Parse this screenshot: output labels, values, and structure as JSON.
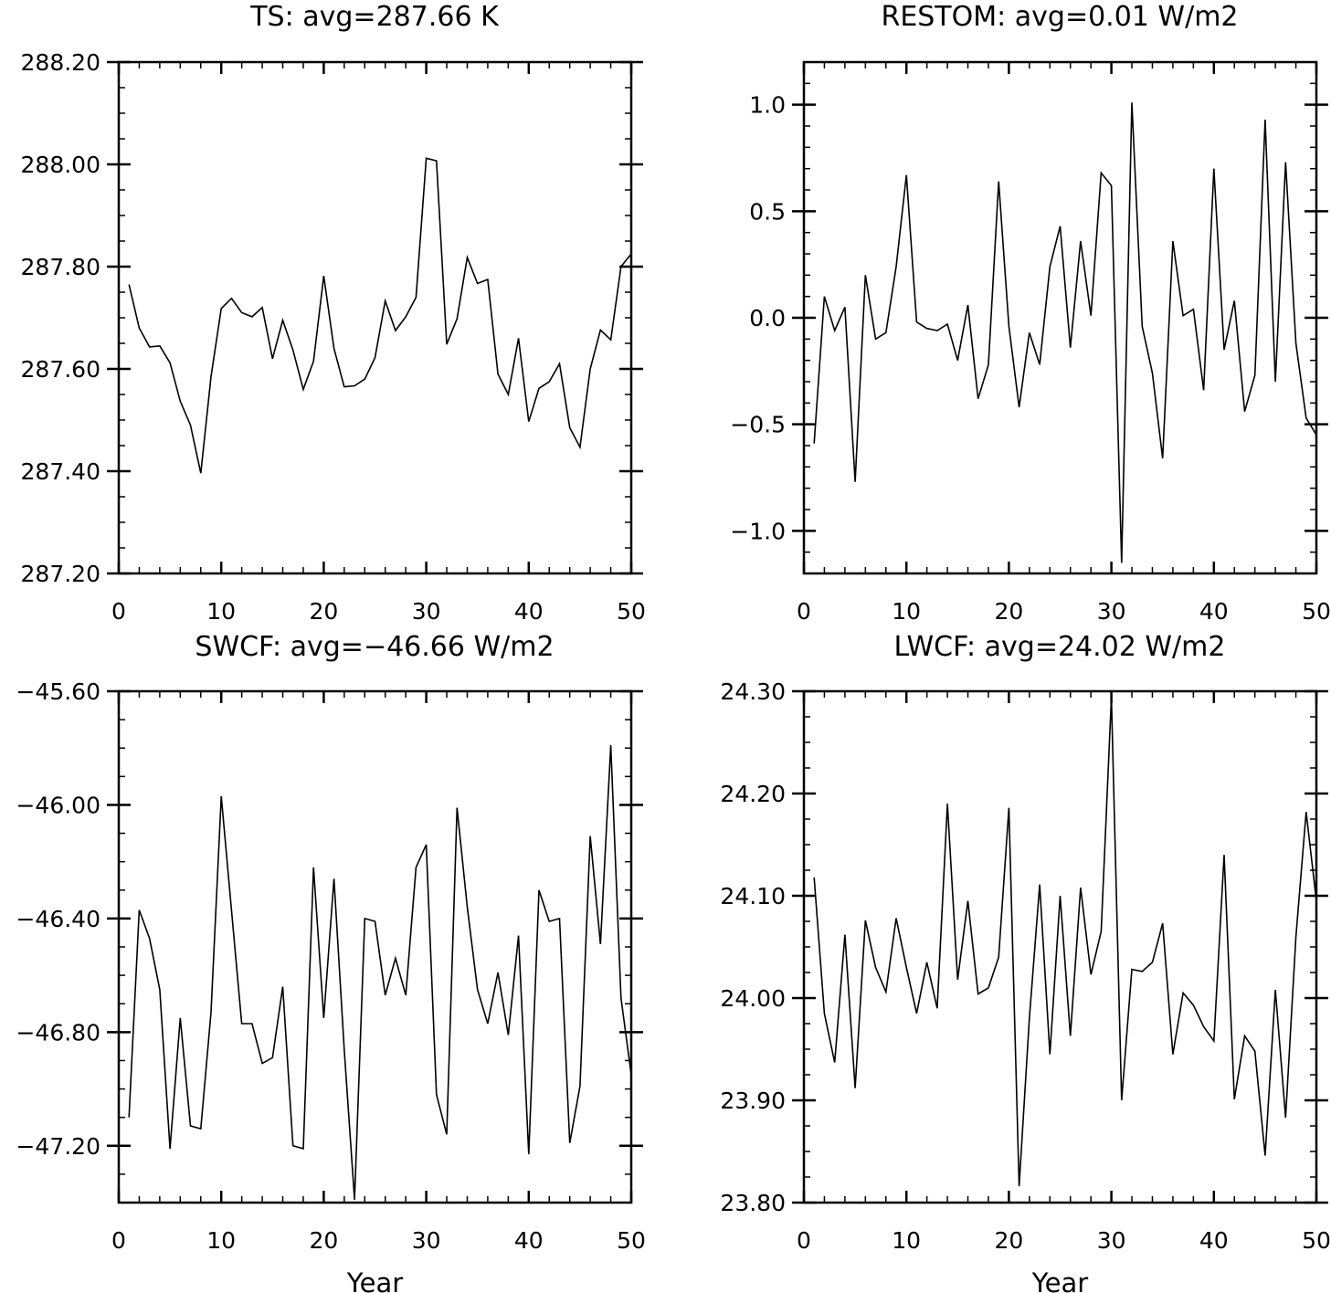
{
  "chart_data": [
    {
      "type": "line",
      "title": "TS: avg=287.66 K",
      "xlabel": "",
      "ylabel": "",
      "xlim": [
        0,
        50
      ],
      "ylim": [
        287.2,
        288.2
      ],
      "xticks": [
        0,
        10,
        20,
        30,
        40,
        50
      ],
      "xtick_labels": [
        "0",
        "10",
        "20",
        "30",
        "40",
        "50"
      ],
      "yticks": [
        287.2,
        287.4,
        287.6,
        287.8,
        288.0,
        288.2
      ],
      "ytick_labels": [
        "287.20",
        "287.40",
        "287.60",
        "287.80",
        "288.00",
        "288.20"
      ],
      "y_minor_step": 0.05,
      "x_minor_step": 2,
      "grid": false,
      "legend": "none",
      "series": [
        {
          "x": [
            1,
            2,
            3,
            4,
            5,
            6,
            7,
            8,
            9,
            10,
            11,
            12,
            13,
            14,
            15,
            16,
            17,
            18,
            19,
            20,
            21,
            22,
            23,
            24,
            25,
            26,
            27,
            28,
            29,
            30,
            31,
            32,
            33,
            34,
            35,
            36,
            37,
            38,
            39,
            40,
            41,
            42,
            43,
            44,
            45,
            46,
            47,
            48,
            49,
            50
          ],
          "values": [
            287.765,
            287.68,
            287.643,
            287.645,
            287.612,
            287.537,
            287.49,
            287.396,
            287.585,
            287.718,
            287.738,
            287.71,
            287.702,
            287.72,
            287.62,
            287.695,
            287.637,
            287.56,
            287.615,
            287.782,
            287.64,
            287.565,
            287.567,
            287.58,
            287.622,
            287.733,
            287.675,
            287.702,
            287.74,
            288.012,
            288.007,
            287.648,
            287.698,
            287.818,
            287.767,
            287.775,
            287.59,
            287.55,
            287.66,
            287.497,
            287.562,
            287.575,
            287.61,
            287.485,
            287.447,
            287.6,
            287.676,
            287.657,
            287.8,
            287.825
          ]
        }
      ]
    },
    {
      "type": "line",
      "title": "RESTOM: avg=0.01 W/m2",
      "xlabel": "",
      "ylabel": "",
      "xlim": [
        0,
        50
      ],
      "ylim": [
        -1.2,
        1.2
      ],
      "xticks": [
        0,
        10,
        20,
        30,
        40,
        50
      ],
      "xtick_labels": [
        "0",
        "10",
        "20",
        "30",
        "40",
        "50"
      ],
      "yticks": [
        -1.0,
        -0.5,
        0.0,
        0.5,
        1.0
      ],
      "ytick_labels": [
        "−1.0",
        "−0.5",
        "0.0",
        "0.5",
        "1.0"
      ],
      "y_minor_step": 0.1,
      "x_minor_step": 2,
      "grid": false,
      "legend": "none",
      "series": [
        {
          "x": [
            1,
            2,
            3,
            4,
            5,
            6,
            7,
            8,
            9,
            10,
            11,
            12,
            13,
            14,
            15,
            16,
            17,
            18,
            19,
            20,
            21,
            22,
            23,
            24,
            25,
            26,
            27,
            28,
            29,
            30,
            31,
            32,
            33,
            34,
            35,
            36,
            37,
            38,
            39,
            40,
            41,
            42,
            43,
            44,
            45,
            46,
            47,
            48,
            49,
            50
          ],
          "values": [
            -0.59,
            0.1,
            -0.06,
            0.05,
            -0.77,
            0.2,
            -0.1,
            -0.07,
            0.24,
            0.67,
            -0.02,
            -0.05,
            -0.06,
            -0.03,
            -0.2,
            0.06,
            -0.38,
            -0.22,
            0.64,
            -0.04,
            -0.42,
            -0.07,
            -0.22,
            0.24,
            0.43,
            -0.14,
            0.36,
            0.01,
            0.68,
            0.62,
            -1.15,
            1.01,
            -0.04,
            -0.26,
            -0.66,
            0.36,
            0.01,
            0.04,
            -0.34,
            0.7,
            -0.15,
            0.08,
            -0.44,
            -0.27,
            0.93,
            -0.3,
            0.73,
            -0.12,
            -0.47,
            -0.55
          ]
        }
      ]
    },
    {
      "type": "line",
      "title": "SWCF: avg=−46.66 W/m2",
      "xlabel": "Year",
      "ylabel": "",
      "xlim": [
        0,
        50
      ],
      "ylim": [
        -47.4,
        -45.6
      ],
      "xticks": [
        0,
        10,
        20,
        30,
        40,
        50
      ],
      "xtick_labels": [
        "0",
        "10",
        "20",
        "30",
        "40",
        "50"
      ],
      "yticks": [
        -47.2,
        -46.8,
        -46.4,
        -46.0,
        -45.6
      ],
      "ytick_labels": [
        "−47.20",
        "−46.80",
        "−46.40",
        "−46.00",
        "−45.60"
      ],
      "y_minor_step": 0.1,
      "x_minor_step": 2,
      "grid": false,
      "legend": "none",
      "series": [
        {
          "x": [
            1,
            2,
            3,
            4,
            5,
            6,
            7,
            8,
            9,
            10,
            11,
            12,
            13,
            14,
            15,
            16,
            17,
            18,
            19,
            20,
            21,
            22,
            23,
            24,
            25,
            26,
            27,
            28,
            29,
            30,
            31,
            32,
            33,
            34,
            35,
            36,
            37,
            38,
            39,
            40,
            41,
            42,
            43,
            44,
            45,
            46,
            47,
            48,
            49,
            50
          ],
          "values": [
            -47.1,
            -46.37,
            -46.47,
            -46.65,
            -47.21,
            -46.75,
            -47.13,
            -47.14,
            -46.73,
            -45.97,
            -46.37,
            -46.77,
            -46.77,
            -46.91,
            -46.89,
            -46.64,
            -47.2,
            -47.21,
            -46.22,
            -46.75,
            -46.26,
            -46.86,
            -47.39,
            -46.4,
            -46.41,
            -46.67,
            -46.54,
            -46.67,
            -46.22,
            -46.14,
            -47.02,
            -47.16,
            -46.01,
            -46.36,
            -46.65,
            -46.77,
            -46.59,
            -46.81,
            -46.46,
            -47.23,
            -46.3,
            -46.41,
            -46.4,
            -47.19,
            -46.99,
            -46.11,
            -46.49,
            -45.79,
            -46.68,
            -46.95
          ]
        }
      ]
    },
    {
      "type": "line",
      "title": "LWCF: avg=24.02 W/m2",
      "xlabel": "Year",
      "ylabel": "",
      "xlim": [
        0,
        50
      ],
      "ylim": [
        23.8,
        24.3
      ],
      "xticks": [
        0,
        10,
        20,
        30,
        40,
        50
      ],
      "xtick_labels": [
        "0",
        "10",
        "20",
        "30",
        "40",
        "50"
      ],
      "yticks": [
        23.8,
        23.9,
        24.0,
        24.1,
        24.2,
        24.3
      ],
      "ytick_labels": [
        "23.80",
        "23.90",
        "24.00",
        "24.10",
        "24.20",
        "24.30"
      ],
      "y_minor_step": 0.025,
      "x_minor_step": 2,
      "grid": false,
      "legend": "none",
      "series": [
        {
          "x": [
            1,
            2,
            3,
            4,
            5,
            6,
            7,
            8,
            9,
            10,
            11,
            12,
            13,
            14,
            15,
            16,
            17,
            18,
            19,
            20,
            21,
            22,
            23,
            24,
            25,
            26,
            27,
            28,
            29,
            30,
            31,
            32,
            33,
            34,
            35,
            36,
            37,
            38,
            39,
            40,
            41,
            42,
            43,
            44,
            45,
            46,
            47,
            48,
            49,
            50
          ],
          "values": [
            24.118,
            23.985,
            23.937,
            24.062,
            23.912,
            24.076,
            24.03,
            24.006,
            24.078,
            24.03,
            23.985,
            24.035,
            23.99,
            24.19,
            24.018,
            24.095,
            24.004,
            24.01,
            24.04,
            24.186,
            23.816,
            23.98,
            24.111,
            23.945,
            24.1,
            23.963,
            24.108,
            24.023,
            24.065,
            24.294,
            23.9,
            24.028,
            24.026,
            24.035,
            24.073,
            23.945,
            24.005,
            23.993,
            23.972,
            23.958,
            24.14,
            23.901,
            23.963,
            23.948,
            23.846,
            24.008,
            23.883,
            24.06,
            24.182,
            24.095
          ]
        }
      ]
    }
  ]
}
